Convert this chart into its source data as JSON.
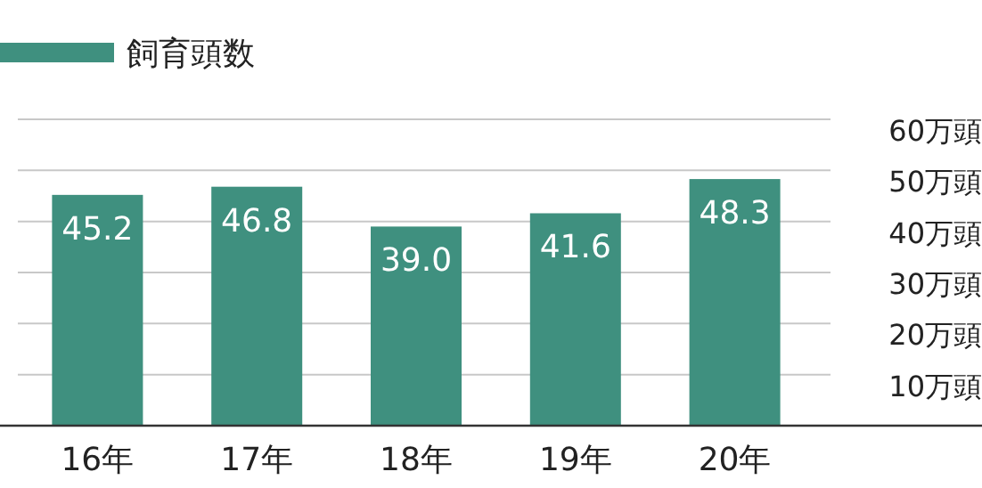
{
  "chart_data": {
    "type": "bar",
    "categories": [
      "16年",
      "17年",
      "18年",
      "19年",
      "20年"
    ],
    "series": [
      {
        "name": "飼育頭数",
        "color": "#3f907f",
        "values": [
          45.2,
          46.8,
          39.0,
          41.6,
          48.3
        ],
        "value_labels": [
          "45.2",
          "46.8",
          "39.0",
          "41.6",
          "48.3"
        ]
      }
    ],
    "ylim": [
      0,
      60
    ],
    "yticks": [
      {
        "value": 10,
        "label": "10万頭"
      },
      {
        "value": 20,
        "label": "20万頭"
      },
      {
        "value": 30,
        "label": "30万頭"
      },
      {
        "value": 40,
        "label": "40万頭"
      },
      {
        "value": 50,
        "label": "50万頭"
      },
      {
        "value": 60,
        "label": "60万頭"
      }
    ],
    "grid": "y",
    "legend": "top left"
  }
}
